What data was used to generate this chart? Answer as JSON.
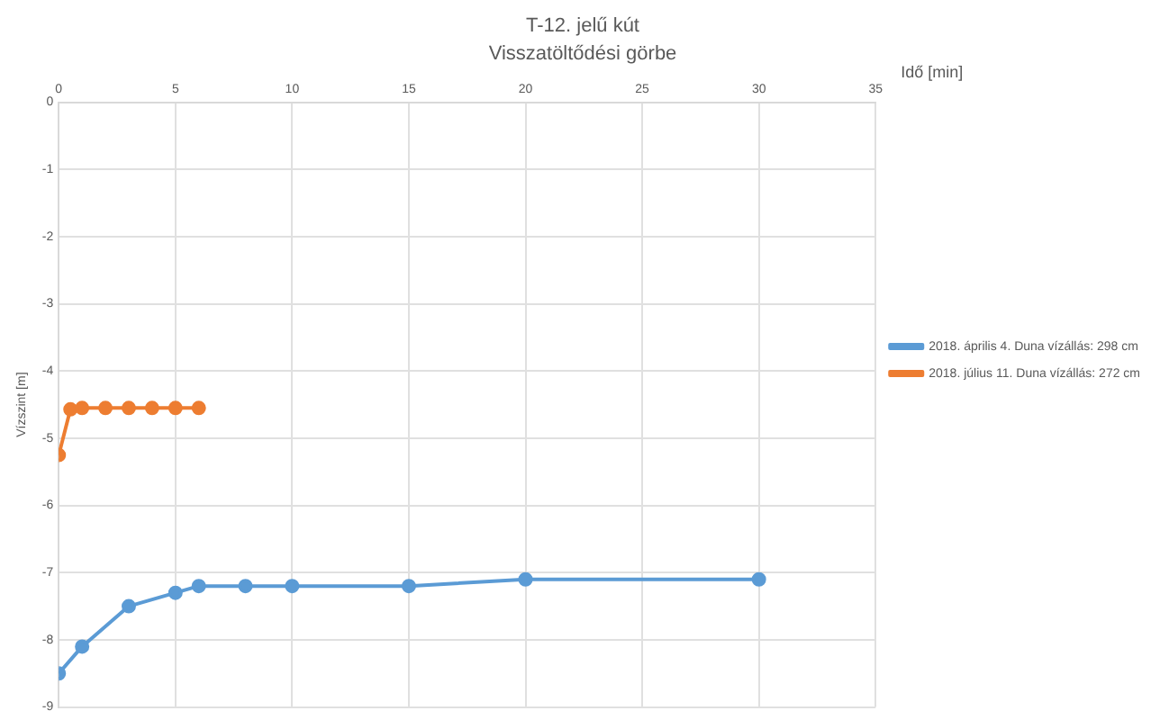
{
  "chart_data": {
    "type": "line",
    "title": "T-12. jelű kút",
    "subtitle": "Visszatöltődési görbe",
    "xlabel": "Idő [min]",
    "ylabel": "Vízszint [m]",
    "xlim": [
      0,
      35
    ],
    "xticks": [
      0,
      5,
      10,
      15,
      20,
      25,
      30,
      35
    ],
    "ylim": [
      -9,
      0
    ],
    "yticks": [
      -9,
      -8,
      -7,
      -6,
      -5,
      -4,
      -3,
      -2,
      -1,
      0
    ],
    "grid": true,
    "legend": "right",
    "marker": "circle",
    "line_style": "solid",
    "series": [
      {
        "name": "2018. április 4. Duna vízállás: 298 cm",
        "color": "#5b9bd5",
        "x": [
          0,
          1,
          3,
          5,
          6,
          8,
          10,
          15,
          20,
          30
        ],
        "values": [
          -8.5,
          -8.1,
          -7.5,
          -7.3,
          -7.2,
          -7.2,
          -7.2,
          -7.2,
          -7.1,
          -7.1
        ]
      },
      {
        "name": "2018. július 11. Duna vízállás: 272 cm",
        "color": "#ed7d31",
        "x": [
          0,
          0.5,
          1,
          2,
          3,
          4,
          5,
          6
        ],
        "values": [
          -5.25,
          -4.57,
          -4.55,
          -4.55,
          -4.55,
          -4.55,
          -4.55,
          -4.55
        ]
      }
    ]
  }
}
